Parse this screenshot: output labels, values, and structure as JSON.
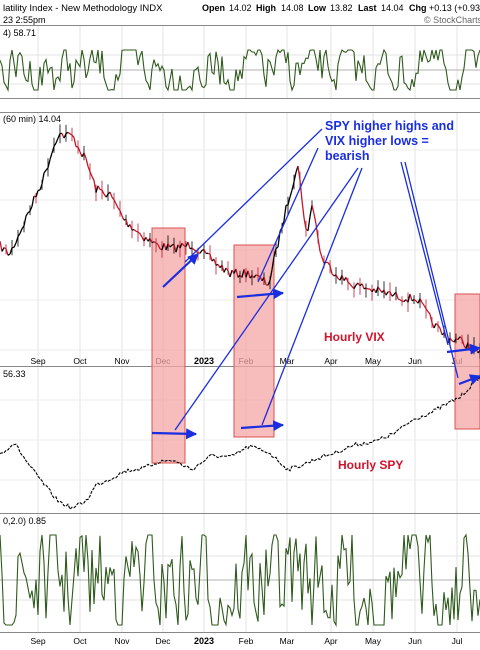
{
  "header": {
    "title": "latility Index - New Methodology INDX",
    "timestamp": "23 2:55pm",
    "quote": {
      "open_label": "Open",
      "open": "14.02",
      "high_label": "High",
      "high": "14.08",
      "low_label": "Low",
      "low": "13.82",
      "last_label": "Last",
      "last": "14.04",
      "chg_label": "Chg",
      "chg": "+0.13 (+0.93"
    },
    "logo": "© StockCharts"
  },
  "panels": {
    "top_indicator_label": "4) 58.71",
    "vix_label": "(60 min) 14.04",
    "spy_label": "56.33",
    "bottom_indicator_label": "0,2.0) 0.85"
  },
  "annotations": {
    "main_lines": [
      "SPY higher highs and",
      "VIX higher lows =",
      "bearish"
    ],
    "hourly_vix": "Hourly VIX",
    "hourly_spy": "Hourly SPY"
  },
  "chart_data": {
    "type": "line",
    "x_ticks": [
      "Sep",
      "Oct",
      "Nov",
      "Dec",
      "2023",
      "Feb",
      "Mar",
      "Apr",
      "May",
      "Jun",
      "Jul"
    ],
    "colors": {
      "price": "#000000",
      "vix_down": "#c0182a",
      "indicator": "#2e5a1c",
      "arrow": "#1a2ee0",
      "highlight_fill": "#f4a6a6",
      "highlight_edge": "#d9534f",
      "annotation_blue": "#1a2ee0",
      "annotation_red": "#d0142c"
    },
    "series": [
      {
        "name": "Hourly VIX",
        "x": [
          0,
          0.02,
          0.05,
          0.09,
          0.12,
          0.15,
          0.18,
          0.2,
          0.23,
          0.26,
          0.3,
          0.33,
          0.36,
          0.4,
          0.43,
          0.48,
          0.52,
          0.56,
          0.59,
          0.62,
          0.64,
          0.65,
          0.67,
          0.7,
          0.73,
          0.76,
          0.8,
          0.84,
          0.87,
          0.9,
          0.93,
          0.96,
          1.0
        ],
        "values": [
          22.5,
          21.8,
          24.3,
          27.8,
          31.3,
          31.2,
          29.2,
          27.0,
          26.5,
          24.5,
          23.2,
          22.5,
          22.3,
          22.6,
          21.7,
          20.3,
          20.3,
          19.5,
          24.5,
          29.0,
          23.0,
          26.0,
          21.5,
          20.3,
          19.5,
          19.2,
          18.8,
          18.4,
          18.3,
          16.5,
          15.2,
          15.0,
          14.0
        ],
        "ylim": [
          13,
          33
        ]
      },
      {
        "name": "Hourly SPY",
        "x": [
          0,
          0.03,
          0.06,
          0.09,
          0.12,
          0.15,
          0.18,
          0.2,
          0.23,
          0.26,
          0.3,
          0.33,
          0.36,
          0.4,
          0.44,
          0.48,
          0.52,
          0.56,
          0.6,
          0.63,
          0.66,
          0.7,
          0.74,
          0.78,
          0.82,
          0.86,
          0.9,
          0.93,
          0.96,
          1.0
        ],
        "values": [
          406,
          413,
          399,
          387,
          376,
          371,
          376,
          386,
          390,
          395,
          397,
          401,
          402,
          396,
          405,
          404,
          411,
          407,
          396,
          399,
          403,
          407,
          412,
          414,
          419,
          428,
          433,
          438,
          443,
          456
        ],
        "ylim": [
          368,
          462
        ]
      }
    ]
  }
}
